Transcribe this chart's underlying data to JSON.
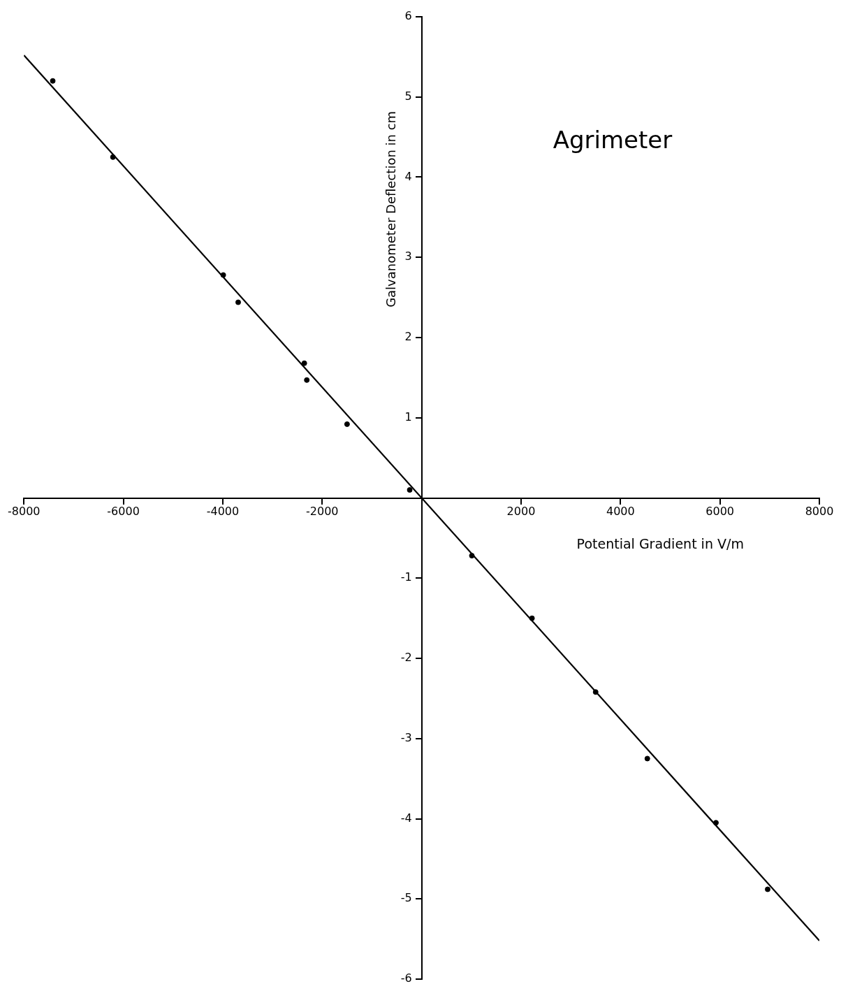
{
  "chart_data": {
    "type": "scatter",
    "title": "Agrimeter",
    "xlabel": "Potential Gradient in V/m",
    "ylabel": "Galvanometer Deflection in cm",
    "xlim": [
      -8000,
      8000
    ],
    "ylim": [
      -6,
      6
    ],
    "xticks": [
      -8000,
      -6000,
      -4000,
      -2000,
      2000,
      4000,
      6000,
      8000
    ],
    "yticks": [
      -6,
      -5,
      -4,
      -3,
      -2,
      -1,
      1,
      2,
      3,
      4,
      5,
      6
    ],
    "grid": false,
    "legend": false,
    "marker": "circle",
    "series": [
      {
        "type": "scatter",
        "color": "#000000",
        "x": [
          -7420,
          -6210,
          -3990,
          -3690,
          -2360,
          -2310,
          -1500,
          -240,
          1010,
          2220,
          3500,
          4540,
          5920,
          6960
        ],
        "values": [
          5.2,
          4.25,
          2.78,
          2.44,
          1.68,
          1.47,
          0.92,
          0.1,
          -0.72,
          -1.5,
          -2.42,
          -3.25,
          -4.05,
          -4.88
        ]
      },
      {
        "type": "line",
        "color": "#000000",
        "marker": "none",
        "line_style": "solid",
        "x": [
          -8000,
          8000
        ],
        "values": [
          5.52,
          -5.52
        ]
      }
    ]
  }
}
